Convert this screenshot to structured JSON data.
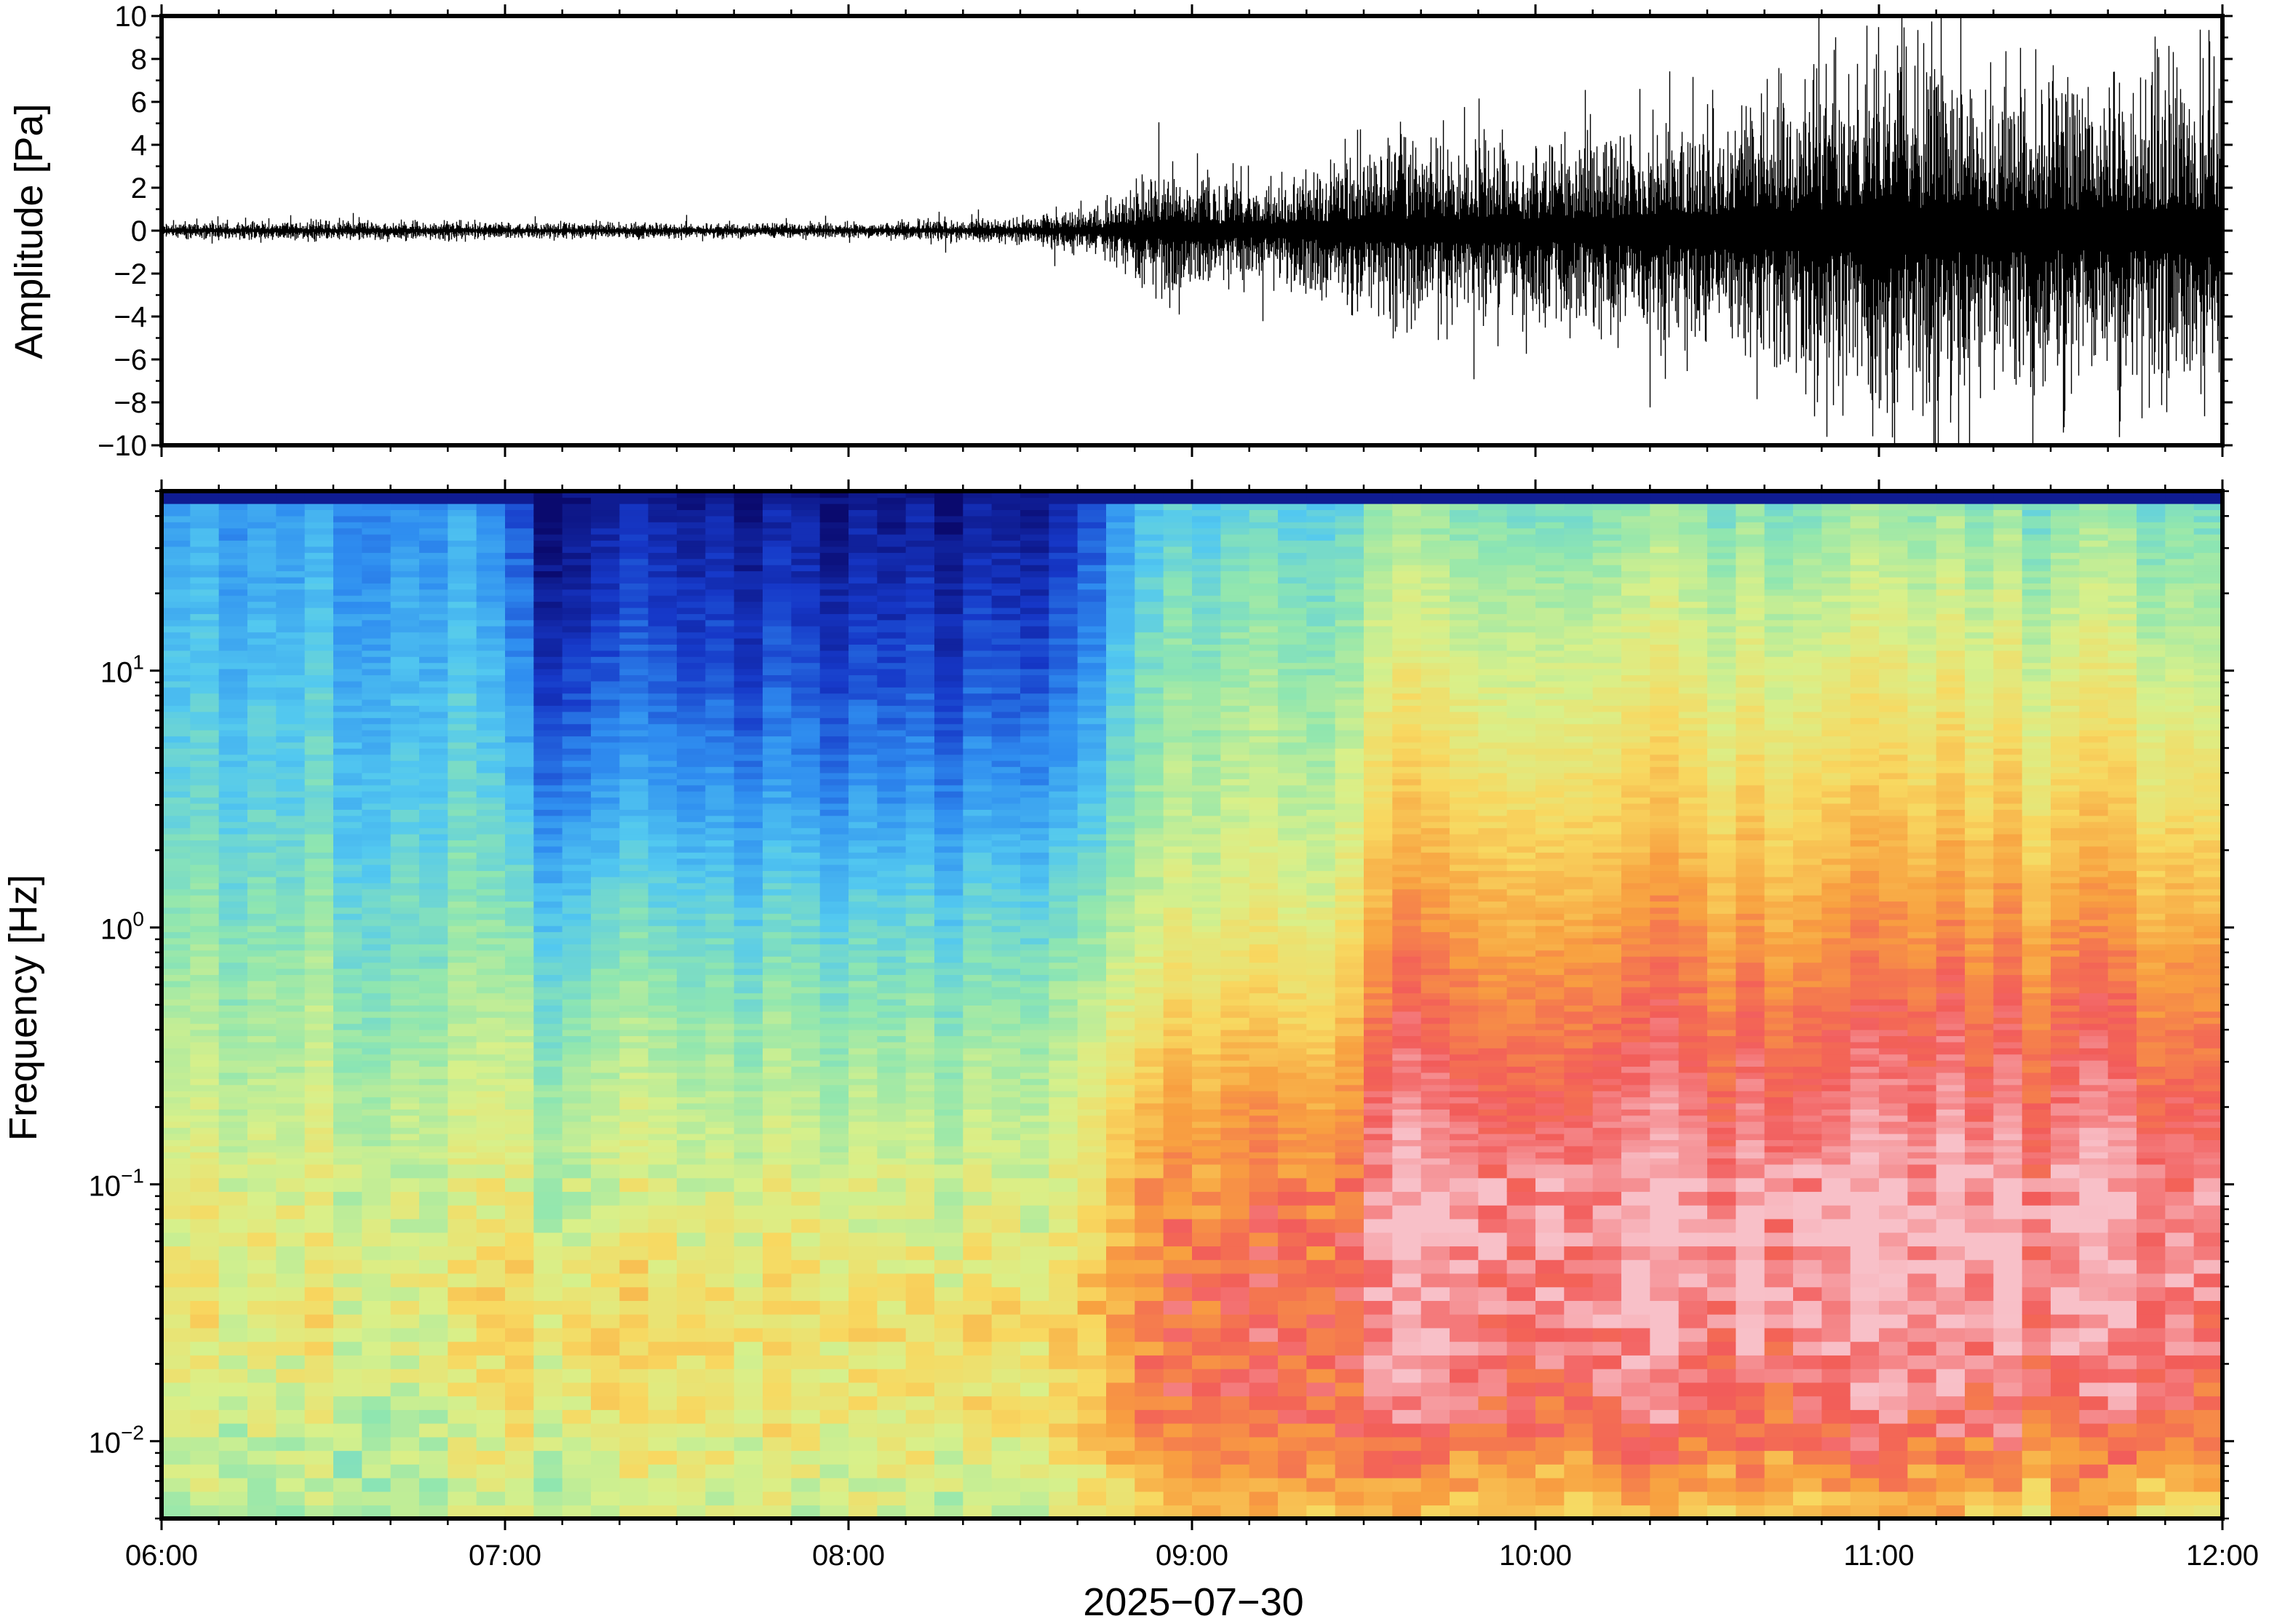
{
  "chart_data": [
    {
      "type": "line",
      "ylabel": "Amplitude [Pa]",
      "ylim": [
        -10,
        10
      ],
      "y_ticks": [
        "−10",
        "−8",
        "−6",
        "−4",
        "−2",
        "0",
        "2",
        "4",
        "6",
        "8",
        "10"
      ],
      "y_tick_values": [
        -10,
        -8,
        -6,
        -4,
        -2,
        0,
        2,
        4,
        6,
        8,
        10
      ],
      "xlim": [
        "06:00",
        "12:00"
      ],
      "series": [
        {
          "x": [
            "06:00",
            "06:30",
            "07:00",
            "07:30",
            "08:00",
            "08:30",
            "08:45",
            "08:55",
            "09:15",
            "09:30",
            "10:00",
            "10:30",
            "11:00",
            "11:30",
            "12:00"
          ],
          "envelope_abs": [
            0.3,
            0.4,
            0.3,
            0.3,
            0.3,
            0.5,
            1.0,
            2.5,
            2.0,
            3.5,
            3.5,
            4.5,
            7.0,
            6.0,
            6.5
          ]
        }
      ],
      "line_color": "#000000"
    },
    {
      "type": "heatmap",
      "ylabel": "Frequency [Hz]",
      "yscale": "log",
      "ylim": [
        0.005,
        50
      ],
      "y_ticks": [
        {
          "base": "10",
          "exp": "−2",
          "value": 0.01
        },
        {
          "base": "10",
          "exp": "−1",
          "value": 0.1
        },
        {
          "base": "10",
          "exp": "0",
          "value": 1
        },
        {
          "base": "10",
          "exp": "1",
          "value": 10
        }
      ],
      "x_ticks": [
        "06:00",
        "07:00",
        "08:00",
        "09:00",
        "10:00",
        "11:00",
        "12:00"
      ],
      "xlabel": "2025−07−30",
      "xlim": [
        "06:00",
        "12:00"
      ],
      "colormap": [
        "#0a0a6e",
        "#1638c8",
        "#2f8ef0",
        "#52c8f0",
        "#8fe6b0",
        "#d8f08a",
        "#f8d860",
        "#f8a040",
        "#f25c5a",
        "#f8c0c8"
      ],
      "power_profiles": [
        {
          "x_from": "06:00",
          "x_to": "07:00",
          "levels_low_to_high_freq": [
            4.5,
            5.0,
            5.5,
            5.2,
            4.8,
            4.3,
            3.8,
            3.3,
            3.0,
            2.6,
            2.2
          ]
        },
        {
          "x_from": "07:00",
          "x_to": "08:45",
          "levels_low_to_high_freq": [
            4.8,
            5.5,
            5.8,
            5.0,
            4.6,
            4.0,
            3.2,
            2.2,
            1.4,
            0.8,
            0.3
          ]
        },
        {
          "x_from": "08:45",
          "x_to": "09:30",
          "levels_low_to_high_freq": [
            6.5,
            7.8,
            7.8,
            7.5,
            7.0,
            6.0,
            5.2,
            4.7,
            4.3,
            3.8,
            3.2
          ]
        },
        {
          "x_from": "09:30",
          "x_to": "12:00",
          "levels_low_to_high_freq": [
            6.2,
            8.0,
            8.6,
            8.8,
            8.2,
            7.6,
            6.8,
            6.0,
            5.3,
            4.6,
            3.8
          ]
        }
      ]
    }
  ]
}
